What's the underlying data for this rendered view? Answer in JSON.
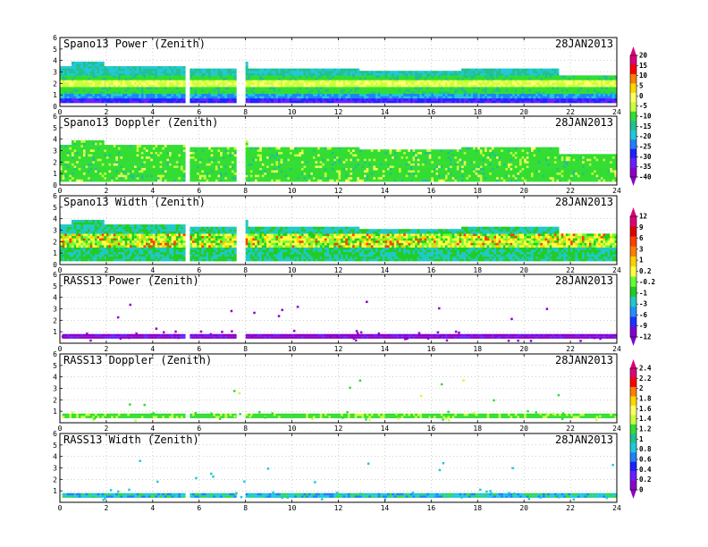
{
  "chart_data": [
    {
      "type": "heatmap",
      "title": "Spano13 Power (Zenith)",
      "date": "28JAN2013",
      "x_ticks": [
        "0",
        "2",
        "4",
        "6",
        "8",
        "10",
        "12",
        "14",
        "16",
        "18",
        "20",
        "22",
        "24"
      ],
      "y_ticks": [
        "0",
        "1",
        "2",
        "3",
        "4",
        "5",
        "6"
      ],
      "xlim": [
        0,
        24
      ],
      "ylim": [
        0,
        6
      ],
      "colorbar": [
        "20",
        "15",
        "10",
        "5",
        "0",
        "-5",
        "-10",
        "-15",
        "-20",
        "-25",
        "-30",
        "-35",
        "-40"
      ],
      "grid": "dotted"
    },
    {
      "type": "heatmap",
      "title": "Spano13 Doppler (Zenith)",
      "date": "28JAN2013",
      "x_ticks": [
        "0",
        "2",
        "4",
        "6",
        "8",
        "10",
        "12",
        "14",
        "16",
        "18",
        "20",
        "22",
        "24"
      ],
      "y_ticks": [
        "0",
        "1",
        "2",
        "3",
        "4",
        "5",
        "6"
      ],
      "xlim": [
        0,
        24
      ],
      "ylim": [
        0,
        6
      ],
      "grid": "dotted"
    },
    {
      "type": "heatmap",
      "title": "Spano13 Width (Zenith)",
      "date": "28JAN2013",
      "x_ticks": [
        "0",
        "2",
        "4",
        "6",
        "8",
        "10",
        "12",
        "14",
        "16",
        "18",
        "20",
        "22",
        "24"
      ],
      "y_ticks": [
        "0",
        "1",
        "2",
        "3",
        "4",
        "5",
        "6"
      ],
      "xlim": [
        0,
        24
      ],
      "ylim": [
        0,
        6
      ],
      "colorbar": [
        "12",
        "9",
        "6",
        "3",
        "1",
        "0.2",
        "-0.2",
        "-1",
        "-3",
        "-6",
        "-9",
        "-12"
      ],
      "grid": "dotted"
    },
    {
      "type": "heatmap",
      "title": "RASS13 Power (Zenith)",
      "date": "28JAN2013",
      "x_ticks": [
        "0",
        "2",
        "4",
        "6",
        "8",
        "10",
        "12",
        "14",
        "16",
        "18",
        "20",
        "22",
        "24"
      ],
      "y_ticks": [
        "1",
        "2",
        "3",
        "4",
        "5",
        "6"
      ],
      "xlim": [
        0,
        24
      ],
      "ylim": [
        0,
        6
      ],
      "grid": "dotted"
    },
    {
      "type": "heatmap",
      "title": "RASS13 Doppler (Zenith)",
      "date": "28JAN2013",
      "x_ticks": [
        "0",
        "2",
        "4",
        "6",
        "8",
        "10",
        "12",
        "14",
        "16",
        "18",
        "20",
        "22",
        "24"
      ],
      "y_ticks": [
        "1",
        "2",
        "3",
        "4",
        "5",
        "6"
      ],
      "xlim": [
        0,
        24
      ],
      "ylim": [
        0,
        6
      ],
      "colorbar": [
        "2.4",
        "2.2",
        "2",
        "1.8",
        "1.6",
        "1.4",
        "1.2",
        "1",
        "0.8",
        "0.6",
        "0.4",
        "0.2",
        "0"
      ],
      "grid": "dotted"
    },
    {
      "type": "heatmap",
      "title": "RASS13 Width (Zenith)",
      "date": "28JAN2013",
      "x_ticks": [
        "0",
        "2",
        "4",
        "6",
        "8",
        "10",
        "12",
        "14",
        "16",
        "18",
        "20",
        "22",
        "24"
      ],
      "y_ticks": [
        "1",
        "2",
        "3",
        "4",
        "5",
        "6"
      ],
      "xlim": [
        0,
        24
      ],
      "ylim": [
        0,
        6
      ],
      "grid": "dotted"
    }
  ]
}
